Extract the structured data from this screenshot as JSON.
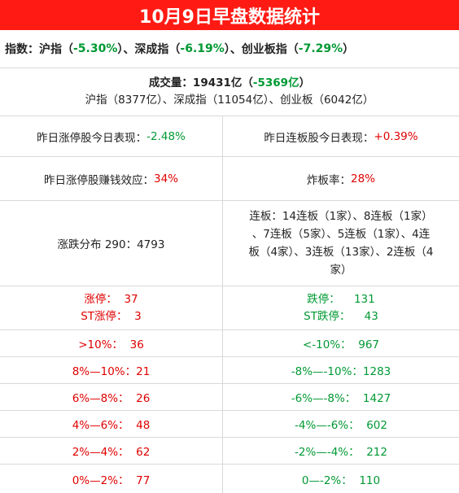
{
  "title": "10月9日早盘数据统计",
  "indices": {
    "prefix": "指数：沪指（",
    "sh": "-5.30%",
    "mid1": "）、深成指（",
    "sz": "-6.19%",
    "mid2": "）、创业板指（",
    "cyb": "-7.29%",
    "suffix": "）"
  },
  "volume": {
    "label": "成交量：19431亿（",
    "change": "-5369亿",
    "close": "）",
    "detail": "沪指（8377亿）、深成指（11054亿）、创业板（6042亿）"
  },
  "yesterday": {
    "limit_up_label": "昨日涨停股今日表现：",
    "limit_up_value": "-2.48%",
    "consecutive_label": "昨日连板股今日表现：",
    "consecutive_value": "+0.39%",
    "profit_label": "昨日涨停股赚钱效应：",
    "profit_value": "34%",
    "break_label": "炸板率：",
    "break_value": "28%"
  },
  "distribution": {
    "label": "涨跌分布 290：4793",
    "consecutive_lines": [
      "连板：14连板（1家）、8连板（1家）",
      "、7连板（5家）、5连板（1家）、4连",
      "板（4家）、3连板（13家）、2连板（4",
      "家）"
    ]
  },
  "limit": {
    "up_label": "涨停：",
    "up_value": "37",
    "st_up_label": "ST涨停：",
    "st_up_value": "3",
    "down_label": "跌停：",
    "down_value": "131",
    "st_down_label": "ST跌停：",
    "st_down_value": "43"
  },
  "ranges": [
    {
      "up": ">10%：  36",
      "down": "<-10%：  967"
    },
    {
      "up": "8%—10%：21",
      "down": "-8%—-10%：1283"
    },
    {
      "up": "6%—8%：  26",
      "down": "-6%—-8%：  1427"
    },
    {
      "up": "4%—6%：  48",
      "down": "-4%—-6%：  602"
    },
    {
      "up": "2%—4%：  62",
      "down": "-2%—-4%：  212"
    },
    {
      "up": "0%—2%：  77",
      "down": "0—-2%：  110"
    }
  ],
  "colors": {
    "title_bg": "#ff1b14",
    "up": "#e00000",
    "down": "#009933"
  }
}
